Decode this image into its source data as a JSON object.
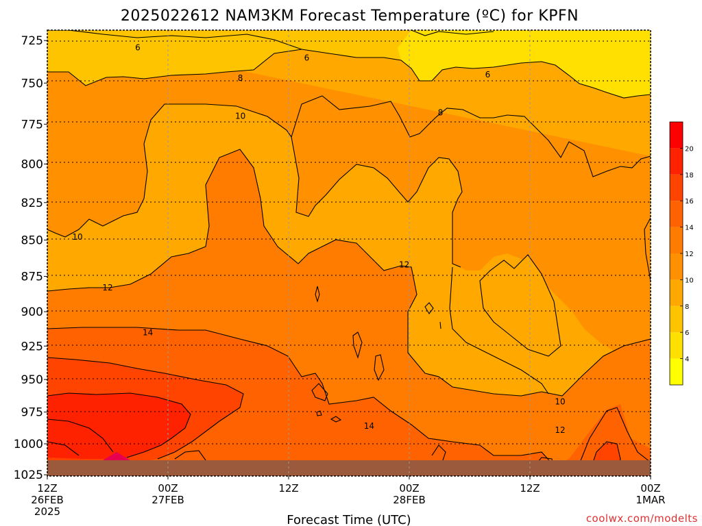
{
  "chart_data": {
    "type": "heatmap",
    "title": "2025022612 NAM3KM Forecast Temperature (ºC) for KPFN",
    "xlabel": "Forecast Time (UTC)",
    "ylabel": "",
    "x_tick_labels": [
      [
        "12Z",
        "26FEB",
        "2025"
      ],
      [
        "00Z",
        "27FEB"
      ],
      [
        "12Z"
      ],
      [
        "00Z",
        "28FEB"
      ],
      [
        "12Z"
      ],
      [
        "00Z",
        "1MAR"
      ]
    ],
    "x_forecast_hours": [
      0,
      12,
      24,
      36,
      48,
      60
    ],
    "y_levels_hPa": [
      725,
      750,
      775,
      800,
      825,
      850,
      875,
      900,
      925,
      950,
      975,
      1000,
      1025
    ],
    "y_scale": "pressure (reversed)",
    "grid": "dotted",
    "colorbar_levels": [
      2,
      4,
      6,
      8,
      10,
      12,
      14,
      16,
      18,
      20,
      22
    ],
    "colorbar_labels": [
      4,
      6,
      8,
      10,
      12,
      14,
      16,
      18,
      20
    ],
    "colorbar_colors": [
      "#ffff00",
      "#ffe000",
      "#ffc400",
      "#ffa800",
      "#ff9000",
      "#ff7c00",
      "#ff6200",
      "#ff4400",
      "#ff2200",
      "#ff0000",
      "#e80050"
    ],
    "contour_labels": [
      {
        "text": "6",
        "hour": 9.0,
        "level": 729
      },
      {
        "text": "6",
        "hour": 25.8,
        "level": 735
      },
      {
        "text": "6",
        "hour": 43.8,
        "level": 745
      },
      {
        "text": "8",
        "hour": 19.2,
        "level": 747
      },
      {
        "text": "8",
        "hour": 39.1,
        "level": 768
      },
      {
        "text": "10",
        "hour": 19.2,
        "level": 770
      },
      {
        "text": "10",
        "hour": 3.0,
        "level": 848
      },
      {
        "text": "12",
        "hour": 6.0,
        "level": 883
      },
      {
        "text": "12",
        "hour": 35.5,
        "level": 867
      },
      {
        "text": "12",
        "hour": 51.0,
        "level": 989
      },
      {
        "text": "14",
        "hour": 10.0,
        "level": 915
      },
      {
        "text": "14",
        "hour": 32.0,
        "level": 986
      },
      {
        "text": "10",
        "hour": 51.0,
        "level": 967
      }
    ],
    "surface_fill": "#9c5a3c",
    "credit": "coolwx.com/modelts"
  }
}
